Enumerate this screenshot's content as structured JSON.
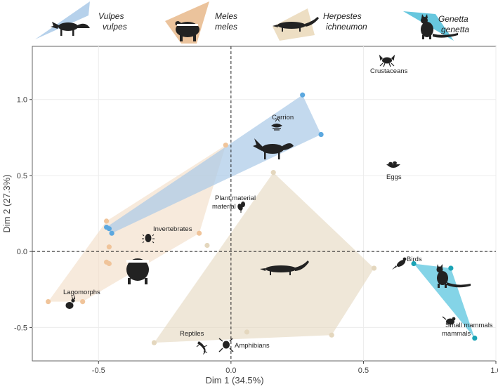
{
  "chart_data": {
    "type": "scatter",
    "xlabel": "Dim 1 (34.5%)",
    "ylabel": "Dim 2 (27.3%)",
    "xlim": [
      -0.75,
      1.0
    ],
    "ylim": [
      -0.72,
      1.35
    ],
    "xticks": [
      -0.5,
      0.0,
      0.5,
      1.0
    ],
    "yticks": [
      -0.5,
      0.0,
      0.5,
      1.0
    ],
    "tick_labels_x": [
      "-0.5",
      "0.0",
      "0.5",
      "1.0"
    ],
    "tick_labels_y": [
      "-0.5",
      "0.0",
      "0.5",
      "1.0"
    ],
    "reference_lines": {
      "x": 0,
      "y": 0
    },
    "legend": [
      {
        "line1": "Vulpes",
        "line2": "vulpes",
        "icon": "fox-icon",
        "color": "#8fb8dc"
      },
      {
        "line1": "Meles",
        "line2": "meles",
        "icon": "badger-icon",
        "color": "#e9bd91"
      },
      {
        "line1": "Herpestes",
        "line2": "ichneumon",
        "icon": "mongoose-icon",
        "color": "#e4d7be"
      },
      {
        "line1": "Genetta",
        "line2": "genetta",
        "icon": "genet-icon",
        "color": "#4cbdd8"
      }
    ],
    "series": [
      {
        "name": "Herpestes ichneumon",
        "color": "#e4d7be",
        "point_color": "#e4d7be",
        "alpha": 0.6,
        "hull": [
          [
            0.16,
            0.52
          ],
          [
            0.54,
            -0.11
          ],
          [
            0.38,
            -0.55
          ],
          [
            -0.29,
            -0.6
          ]
        ],
        "points": [
          [
            0.16,
            0.52
          ],
          [
            0.54,
            -0.11
          ],
          [
            0.38,
            -0.55
          ],
          [
            0.06,
            -0.53
          ],
          [
            -0.29,
            -0.6
          ],
          [
            -0.09,
            0.04
          ]
        ]
      },
      {
        "name": "Meles meles",
        "color": "#f1dcc4",
        "point_color": "#f0c49a",
        "alpha": 0.6,
        "hull": [
          [
            -0.02,
            0.7
          ],
          [
            -0.12,
            0.12
          ],
          [
            -0.56,
            -0.33
          ],
          [
            -0.69,
            -0.33
          ],
          [
            -0.47,
            0.2
          ]
        ],
        "points": [
          [
            -0.02,
            0.7
          ],
          [
            -0.47,
            0.2
          ],
          [
            -0.12,
            0.12
          ],
          [
            -0.46,
            0.03
          ],
          [
            -0.47,
            -0.07
          ],
          [
            -0.46,
            -0.08
          ],
          [
            -0.56,
            -0.33
          ],
          [
            -0.69,
            -0.33
          ]
        ]
      },
      {
        "name": "Vulpes vulpes",
        "color": "#a9c9e7",
        "point_color": "#5ca8df",
        "alpha": 0.7,
        "hull": [
          [
            0.27,
            1.03
          ],
          [
            0.34,
            0.77
          ],
          [
            -0.45,
            0.12
          ],
          [
            -0.47,
            0.16
          ]
        ],
        "points": [
          [
            0.27,
            1.03
          ],
          [
            0.34,
            0.77
          ],
          [
            -0.47,
            0.16
          ],
          [
            -0.46,
            0.15
          ],
          [
            -0.45,
            0.12
          ]
        ]
      },
      {
        "name": "Genetta genetta",
        "color": "#6fcce3",
        "point_color": "#1aa3b5",
        "alpha": 0.85,
        "hull": [
          [
            0.69,
            -0.08
          ],
          [
            0.83,
            -0.11
          ],
          [
            0.92,
            -0.57
          ]
        ],
        "points": [
          [
            0.69,
            -0.08
          ],
          [
            0.83,
            -0.11
          ],
          [
            0.92,
            -0.57
          ]
        ]
      }
    ],
    "food_categories": [
      {
        "label": "Crustaceans",
        "x": 0.6,
        "y": 1.12,
        "icon": "crab-icon"
      },
      {
        "label": "Carrion",
        "x": 0.2,
        "y": 0.87,
        "icon": "carrion-icon"
      },
      {
        "label": "Eggs",
        "x": 0.6,
        "y": 0.6,
        "icon": "nest-icon"
      },
      {
        "label": "Plant material",
        "x": -0.04,
        "y": 0.32,
        "icon": "plant-icon"
      },
      {
        "label": "Invertebrates",
        "x": -0.32,
        "y": 0.11,
        "icon": "beetle-icon"
      },
      {
        "label": "Birds",
        "x": 0.65,
        "y": -0.06,
        "icon": "bird-icon"
      },
      {
        "label": "Lagomorphs",
        "x": -0.63,
        "y": -0.33,
        "icon": "rabbit-icon"
      },
      {
        "label": "Small mammals",
        "x": 0.84,
        "y": -0.47,
        "icon": "rodent-icon"
      },
      {
        "label": "Reptiles",
        "x": -0.12,
        "y": -0.62,
        "icon": "lizard-icon"
      },
      {
        "label": "Amphibians",
        "x": -0.01,
        "y": -0.62,
        "icon": "frog-icon"
      }
    ]
  }
}
